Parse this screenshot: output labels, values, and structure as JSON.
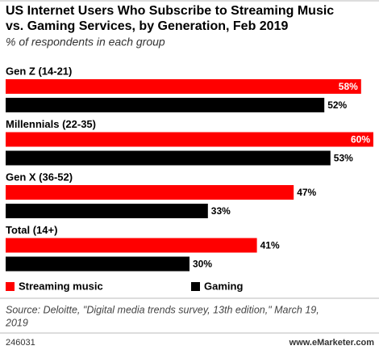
{
  "chart_data": {
    "type": "bar",
    "orientation": "horizontal",
    "title": [
      "US Internet Users Who Subscribe to Streaming Music",
      "vs. Gaming Services, by Generation, Feb 2019"
    ],
    "subtitle": "% of respondents in each group",
    "categories": [
      "Gen Z (14-21)",
      "Millennials (22-35)",
      "Gen X (36-52)",
      "Total (14+)"
    ],
    "series": [
      {
        "name": "Streaming music",
        "color": "#ff0000",
        "values": [
          58,
          60,
          47,
          41
        ],
        "value_labels": [
          "58%",
          "60%",
          "47%",
          "41%"
        ]
      },
      {
        "name": "Gaming",
        "color": "#000000",
        "values": [
          52,
          53,
          33,
          30
        ],
        "value_labels": [
          "52%",
          "53%",
          "33%",
          "30%"
        ]
      }
    ],
    "source": [
      "Source: Deloitte, \"Digital media trends survey, 13th edition,\" March 19,",
      "2019"
    ],
    "chart_id": "246031",
    "brand": "www.eMarketer.com"
  }
}
